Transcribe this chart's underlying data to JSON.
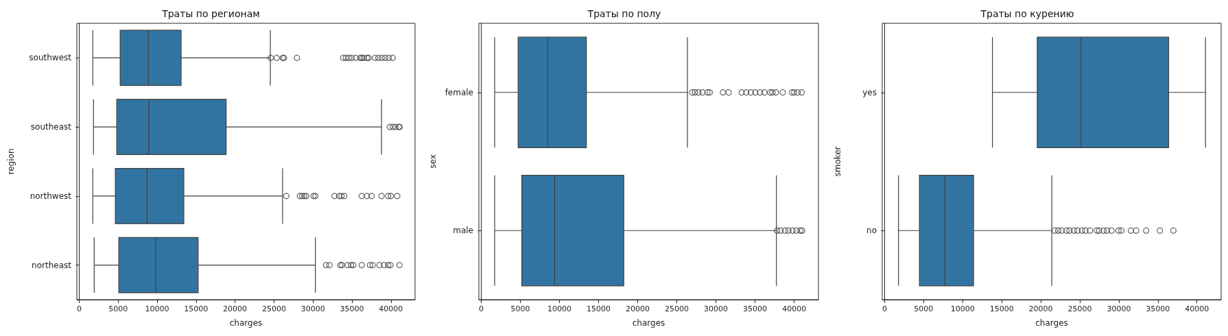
{
  "chart_data": [
    {
      "type": "box",
      "orientation": "horizontal",
      "title": "Траты по регионам",
      "xlabel": "charges",
      "ylabel": "region",
      "color": "#3274a1",
      "categories": [
        "southwest",
        "southeast",
        "northwest",
        "northeast"
      ],
      "boxes": [
        {
          "low": 1750,
          "q1": 5260,
          "median": 8880,
          "q3": 13080,
          "high": 24530,
          "outliers": [
            24580,
            25340,
            26130,
            26280,
            27940,
            33870,
            34220,
            34600,
            34980,
            35470,
            36060,
            36260,
            36500,
            36930,
            37140,
            37960,
            38390,
            38830,
            39270,
            39710,
            40230
          ]
        },
        {
          "low": 1840,
          "q1": 4820,
          "median": 8930,
          "q3": 18860,
          "high": 38800,
          "outliers": [
            39850,
            40230,
            40580,
            41020,
            41110
          ]
        },
        {
          "low": 1750,
          "q1": 4640,
          "median": 8700,
          "q3": 13430,
          "high": 26100,
          "outliers": [
            26570,
            28320,
            28610,
            28900,
            29140,
            30070,
            30310,
            32760,
            33370,
            33660,
            34010,
            36260,
            36930,
            37520,
            38800,
            39650,
            40000,
            40820
          ]
        },
        {
          "low": 1930,
          "q1": 5080,
          "median": 9810,
          "q3": 15270,
          "high": 30310,
          "outliers": [
            31680,
            32120,
            33520,
            33720,
            34450,
            34890,
            35180,
            36260,
            37310,
            37660,
            38540,
            39120,
            39650,
            39940,
            41110
          ]
        }
      ],
      "xlim": [
        -300,
        43100
      ],
      "xticks": [
        0,
        5000,
        10000,
        15000,
        20000,
        25000,
        30000,
        35000,
        40000
      ]
    },
    {
      "type": "box",
      "orientation": "horizontal",
      "title": "Траты по полу",
      "xlabel": "charges",
      "ylabel": "sex",
      "color": "#3274a1",
      "categories": [
        "female",
        "male"
      ],
      "boxes": [
        {
          "low": 1720,
          "q1": 4720,
          "median": 8510,
          "q3": 13440,
          "high": 26360,
          "outliers": [
            26970,
            27320,
            27760,
            28280,
            28920,
            29210,
            30900,
            31630,
            33290,
            33880,
            34460,
            35040,
            35630,
            36210,
            36940,
            37230,
            37670,
            38540,
            39710,
            40000,
            40440,
            40960
          ]
        },
        {
          "low": 1720,
          "q1": 5190,
          "median": 9390,
          "q3": 18220,
          "high": 37730,
          "outliers": [
            37810,
            38250,
            38830,
            39270,
            39790,
            40290,
            40790,
            41020
          ]
        }
      ],
      "xlim": [
        -300,
        43100
      ],
      "xticks": [
        0,
        5000,
        10000,
        15000,
        20000,
        25000,
        30000,
        35000,
        40000
      ]
    },
    {
      "type": "box",
      "orientation": "horizontal",
      "title": "Траты по курению",
      "xlabel": "charges",
      "ylabel": "smoker",
      "color": "#3274a1",
      "categories": [
        "yes",
        "no"
      ],
      "boxes": [
        {
          "low": 13810,
          "q1": 19550,
          "median": 25170,
          "q3": 36380,
          "high": 41100
        },
        {
          "low": 1780,
          "q1": 4460,
          "median": 7720,
          "q3": 11390,
          "high": 21410,
          "outliers": [
            21790,
            22230,
            22660,
            23300,
            23680,
            24260,
            24700,
            25280,
            25720,
            26300,
            27170,
            27470,
            28050,
            28490,
            29070,
            29950,
            30320,
            31550,
            32220,
            33500,
            35250,
            36990
          ]
        }
      ],
      "xlim": [
        -300,
        43100
      ],
      "xticks": [
        0,
        5000,
        10000,
        15000,
        20000,
        25000,
        30000,
        35000,
        40000
      ]
    }
  ]
}
